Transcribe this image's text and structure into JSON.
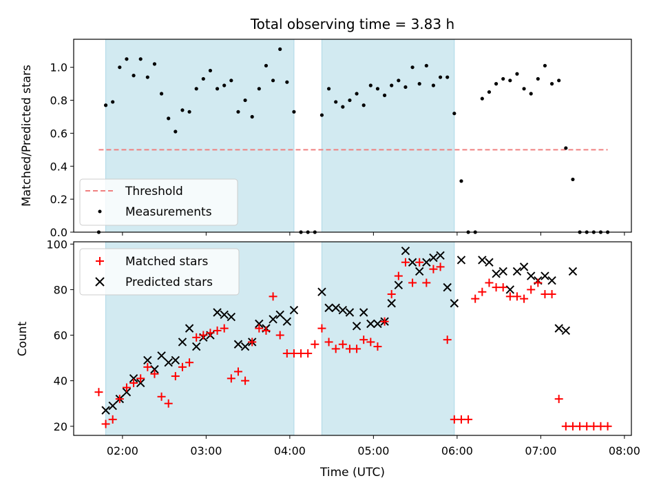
{
  "figure_title": "Total observing time = 3.83 h",
  "colors": {
    "span": "#add8e6",
    "threshold": "#f08080",
    "measurement": "#000000",
    "matched": "#ff0000",
    "predicted": "#000000"
  },
  "chart_data": [
    {
      "type": "scatter",
      "ylabel": "Matched/Predicted stars",
      "xlabel": "",
      "ylim": [
        0,
        1.17
      ],
      "yticks": [
        0.0,
        0.2,
        0.4,
        0.6,
        0.8,
        1.0
      ],
      "ytick_labels": [
        "0.0",
        "0.2",
        "0.4",
        "0.6",
        "0.8",
        "1.0"
      ],
      "x_range": [
        "01:25",
        "08:05"
      ],
      "shaded_spans": [
        [
          "01:48",
          "04:03"
        ],
        [
          "04:23",
          "05:58"
        ]
      ],
      "threshold": {
        "y": 0.5,
        "x_from": "01:43",
        "x_to": "07:48"
      },
      "legend": {
        "placement": "lower-left",
        "entries": [
          "Threshold",
          "Measurements"
        ]
      },
      "series": [
        {
          "name": "Measurements",
          "x": [
            "01:43",
            "01:48",
            "01:53",
            "01:58",
            "02:03",
            "02:08",
            "02:13",
            "02:18",
            "02:23",
            "02:28",
            "02:33",
            "02:38",
            "02:43",
            "02:48",
            "02:53",
            "02:58",
            "03:03",
            "03:08",
            "03:13",
            "03:18",
            "03:23",
            "03:28",
            "03:33",
            "03:38",
            "03:43",
            "03:48",
            "03:53",
            "03:58",
            "04:03",
            "04:08",
            "04:13",
            "04:18",
            "04:23",
            "04:28",
            "04:33",
            "04:38",
            "04:43",
            "04:48",
            "04:53",
            "04:58",
            "05:03",
            "05:08",
            "05:13",
            "05:18",
            "05:23",
            "05:28",
            "05:33",
            "05:38",
            "05:43",
            "05:48",
            "05:53",
            "05:58",
            "06:03",
            "06:08",
            "06:13",
            "06:18",
            "06:23",
            "06:28",
            "06:33",
            "06:38",
            "06:43",
            "06:48",
            "06:53",
            "06:58",
            "07:03",
            "07:08",
            "07:13",
            "07:18",
            "07:23",
            "07:28",
            "07:33",
            "07:38",
            "07:43",
            "07:48"
          ],
          "y": [
            0.0,
            0.77,
            0.79,
            1.0,
            1.05,
            0.95,
            1.05,
            0.94,
            1.02,
            0.84,
            0.69,
            0.61,
            0.74,
            0.73,
            0.87,
            0.93,
            0.98,
            0.87,
            0.89,
            0.92,
            0.73,
            0.8,
            0.7,
            0.87,
            1.01,
            0.92,
            1.11,
            0.91,
            0.73,
            0.0,
            0.0,
            0.0,
            0.71,
            0.87,
            0.79,
            0.76,
            0.8,
            0.84,
            0.77,
            0.89,
            0.87,
            0.83,
            0.89,
            0.92,
            0.88,
            1.0,
            0.9,
            1.01,
            0.89,
            0.94,
            0.94,
            0.72,
            0.31,
            0.0,
            0.0,
            0.81,
            0.85,
            0.9,
            0.93,
            0.92,
            0.96,
            0.87,
            0.84,
            0.93,
            1.01,
            0.9,
            0.92,
            0.51,
            0.32,
            0.0,
            0.0,
            0.0,
            0.0,
            0.0
          ]
        }
      ]
    },
    {
      "type": "scatter",
      "ylabel": "Count",
      "xlabel": "Time (UTC)",
      "ylim": [
        16,
        101
      ],
      "yticks": [
        20,
        40,
        60,
        80,
        100
      ],
      "ytick_labels": [
        "20",
        "40",
        "60",
        "80",
        "100"
      ],
      "x_range": [
        "01:25",
        "08:05"
      ],
      "xticks": [
        "02:00",
        "03:00",
        "04:00",
        "05:00",
        "06:00",
        "07:00",
        "08:00"
      ],
      "xtick_labels": [
        "02:00",
        "03:00",
        "04:00",
        "05:00",
        "06:00",
        "07:00",
        "08:00"
      ],
      "shaded_spans": [
        [
          "01:48",
          "04:03"
        ],
        [
          "04:23",
          "05:58"
        ]
      ],
      "legend": {
        "placement": "upper-left",
        "entries": [
          "Matched stars",
          "Predicted stars"
        ]
      },
      "series": [
        {
          "name": "Matched stars",
          "marker": "plus",
          "x": [
            "01:43",
            "01:48",
            "01:53",
            "01:58",
            "02:03",
            "02:08",
            "02:13",
            "02:18",
            "02:23",
            "02:28",
            "02:33",
            "02:38",
            "02:43",
            "02:48",
            "02:53",
            "02:58",
            "03:03",
            "03:08",
            "03:13",
            "03:18",
            "03:23",
            "03:28",
            "03:33",
            "03:38",
            "03:43",
            "03:48",
            "03:53",
            "03:58",
            "04:03",
            "04:08",
            "04:13",
            "04:18",
            "04:23",
            "04:28",
            "04:33",
            "04:38",
            "04:43",
            "04:48",
            "04:53",
            "04:58",
            "05:03",
            "05:08",
            "05:13",
            "05:18",
            "05:23",
            "05:28",
            "05:33",
            "05:38",
            "05:43",
            "05:48",
            "05:53",
            "05:58",
            "06:03",
            "06:08",
            "06:13",
            "06:18",
            "06:23",
            "06:28",
            "06:33",
            "06:38",
            "06:43",
            "06:48",
            "06:53",
            "06:58",
            "07:03",
            "07:08",
            "07:13",
            "07:18",
            "07:23",
            "07:28",
            "07:33",
            "07:38",
            "07:43",
            "07:48"
          ],
          "y": [
            35,
            21,
            23,
            32,
            37,
            39,
            41,
            46,
            43,
            33,
            30,
            42,
            46,
            48,
            59,
            60,
            61,
            62,
            63,
            41,
            44,
            40,
            57,
            63,
            62,
            77,
            60,
            52,
            52,
            52,
            52,
            56,
            63,
            57,
            54,
            56,
            54,
            54,
            58,
            57,
            55,
            66,
            78,
            86,
            92,
            83,
            92,
            83,
            89,
            90,
            58,
            23,
            23,
            23,
            76,
            79,
            83,
            81,
            81,
            77,
            77,
            76,
            80,
            83,
            78,
            78,
            32,
            20,
            20,
            20,
            20,
            20,
            20,
            20
          ]
        },
        {
          "name": "Predicted stars",
          "marker": "x",
          "x": [
            "01:48",
            "01:53",
            "01:58",
            "02:03",
            "02:08",
            "02:13",
            "02:18",
            "02:23",
            "02:28",
            "02:33",
            "02:38",
            "02:43",
            "02:48",
            "02:53",
            "02:58",
            "03:03",
            "03:08",
            "03:13",
            "03:18",
            "03:23",
            "03:28",
            "03:33",
            "03:38",
            "03:43",
            "03:48",
            "03:53",
            "03:58",
            "04:03",
            "04:23",
            "04:28",
            "04:33",
            "04:38",
            "04:43",
            "04:48",
            "04:53",
            "04:58",
            "05:03",
            "05:08",
            "05:13",
            "05:18",
            "05:23",
            "05:28",
            "05:33",
            "05:38",
            "05:43",
            "05:48",
            "05:53",
            "05:58",
            "06:03",
            "06:18",
            "06:23",
            "06:28",
            "06:33",
            "06:38",
            "06:43",
            "06:48",
            "06:53",
            "06:58",
            "07:03",
            "07:08",
            "07:13",
            "07:18",
            "07:23"
          ],
          "y": [
            27,
            29,
            32,
            35,
            41,
            39,
            49,
            45,
            51,
            48,
            49,
            57,
            63,
            55,
            59,
            60,
            70,
            69,
            68,
            56,
            55,
            57,
            65,
            63,
            67,
            69,
            66,
            71,
            79,
            72,
            72,
            71,
            70,
            64,
            70,
            65,
            65,
            66,
            74,
            82,
            97,
            92,
            88,
            92,
            94,
            95,
            81,
            74,
            93,
            93,
            92,
            87,
            88,
            80,
            88,
            90,
            86,
            84,
            86,
            84,
            63,
            62,
            88
          ]
        }
      ]
    }
  ]
}
